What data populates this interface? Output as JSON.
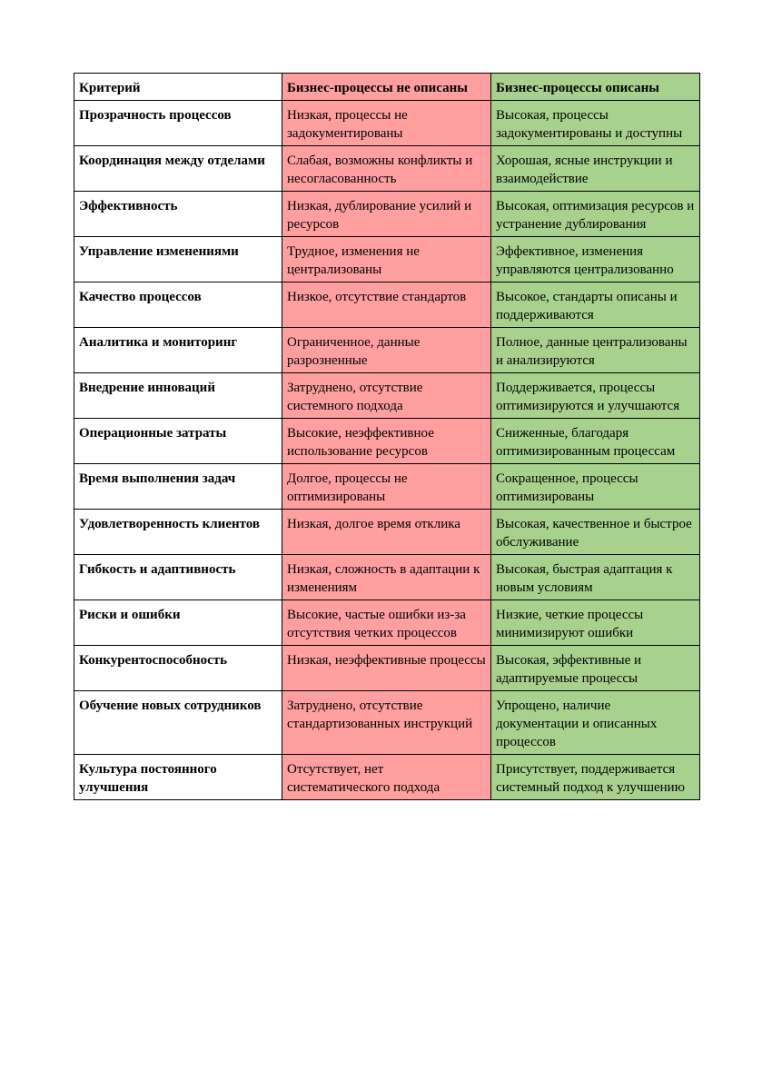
{
  "table": {
    "headers": {
      "criterion": "Критерий",
      "not_described": "Бизнес-процессы не описаны",
      "described": "Бизнес-процессы описаны"
    },
    "colors": {
      "not_described_bg": "#ff9f9f",
      "described_bg": "#a9d18e"
    },
    "rows": [
      {
        "criterion": "Прозрачность процессов",
        "not_described": "Низкая, процессы не задокументированы",
        "described": "Высокая, процессы задокументированы и доступны"
      },
      {
        "criterion": "Координация между отделами",
        "not_described": "Слабая, возможны конфликты и несогласованность",
        "described": "Хорошая, ясные инструкции и взаимодействие"
      },
      {
        "criterion": "Эффективность",
        "not_described": "Низкая, дублирование усилий и ресурсов",
        "described": "Высокая, оптимизация ресурсов и устранение дублирования"
      },
      {
        "criterion": "Управление изменениями",
        "not_described": "Трудное, изменения не централизованы",
        "described": "Эффективное, изменения управляются централизованно"
      },
      {
        "criterion": "Качество процессов",
        "not_described": "Низкое, отсутствие стандартов",
        "described": "Высокое, стандарты описаны и поддерживаются"
      },
      {
        "criterion": "Аналитика и мониторинг",
        "not_described": "Ограниченное, данные разрозненные",
        "described": "Полное, данные централизованы и анализируются"
      },
      {
        "criterion": "Внедрение инноваций",
        "not_described": "Затруднено, отсутствие системного подхода",
        "described": "Поддерживается, процессы оптимизируются и улучшаются"
      },
      {
        "criterion": "Операционные затраты",
        "not_described": "Высокие, неэффективное использование ресурсов",
        "described": "Сниженные, благодаря оптимизированным процессам"
      },
      {
        "criterion": "Время выполнения задач",
        "not_described": "Долгое, процессы не оптимизированы",
        "described": "Сокращенное, процессы оптимизированы"
      },
      {
        "criterion": "Удовлетворенность клиентов",
        "not_described": "Низкая, долгое время отклика",
        "described": "Высокая, качественное и быстрое обслуживание"
      },
      {
        "criterion": "Гибкость и адаптивность",
        "not_described": "Низкая, сложность в адаптации к изменениям",
        "described": "Высокая, быстрая адаптация к новым условиям"
      },
      {
        "criterion": "Риски и ошибки",
        "not_described": "Высокие, частые ошибки из-за отсутствия четких процессов",
        "described": "Низкие, четкие процессы минимизируют ошибки"
      },
      {
        "criterion": "Конкурентоспособность",
        "not_described": "Низкая, неэффективные процессы",
        "described": "Высокая, эффективные и адаптируемые процессы"
      },
      {
        "criterion": "Обучение новых сотрудников",
        "not_described": "Затруднено, отсутствие стандартизованных инструкций",
        "described": "Упрощено, наличие документации и описанных процессов"
      },
      {
        "criterion": "Культура постоянного улучшения",
        "not_described": "Отсутствует, нет систематического подхода",
        "described": "Присутствует, поддерживается системный подход к улучшению"
      }
    ]
  }
}
